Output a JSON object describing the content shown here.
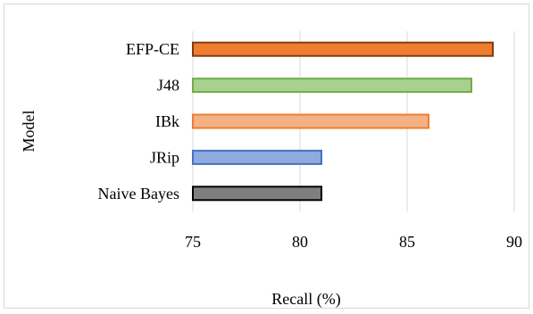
{
  "chart_data": {
    "type": "bar",
    "orientation": "horizontal",
    "categories": [
      "EFP-CE",
      "J48",
      "IBk",
      "JRip",
      "Naive Bayes"
    ],
    "values": [
      89,
      88,
      86,
      81,
      81
    ],
    "colors": {
      "fills": [
        "#ED7D31",
        "#A9D18E",
        "#F4B183",
        "#8FAADC",
        "#7F7F7F"
      ],
      "strokes": [
        "#843C0C",
        "#70AD47",
        "#ED7D31",
        "#4472C4",
        "#000000"
      ]
    },
    "xlabel": "Recall (%)",
    "ylabel": "Model",
    "xlim": [
      75,
      91.5
    ],
    "xticks": [
      75,
      80,
      85,
      90
    ],
    "grid": "vertical",
    "legend": "none"
  }
}
